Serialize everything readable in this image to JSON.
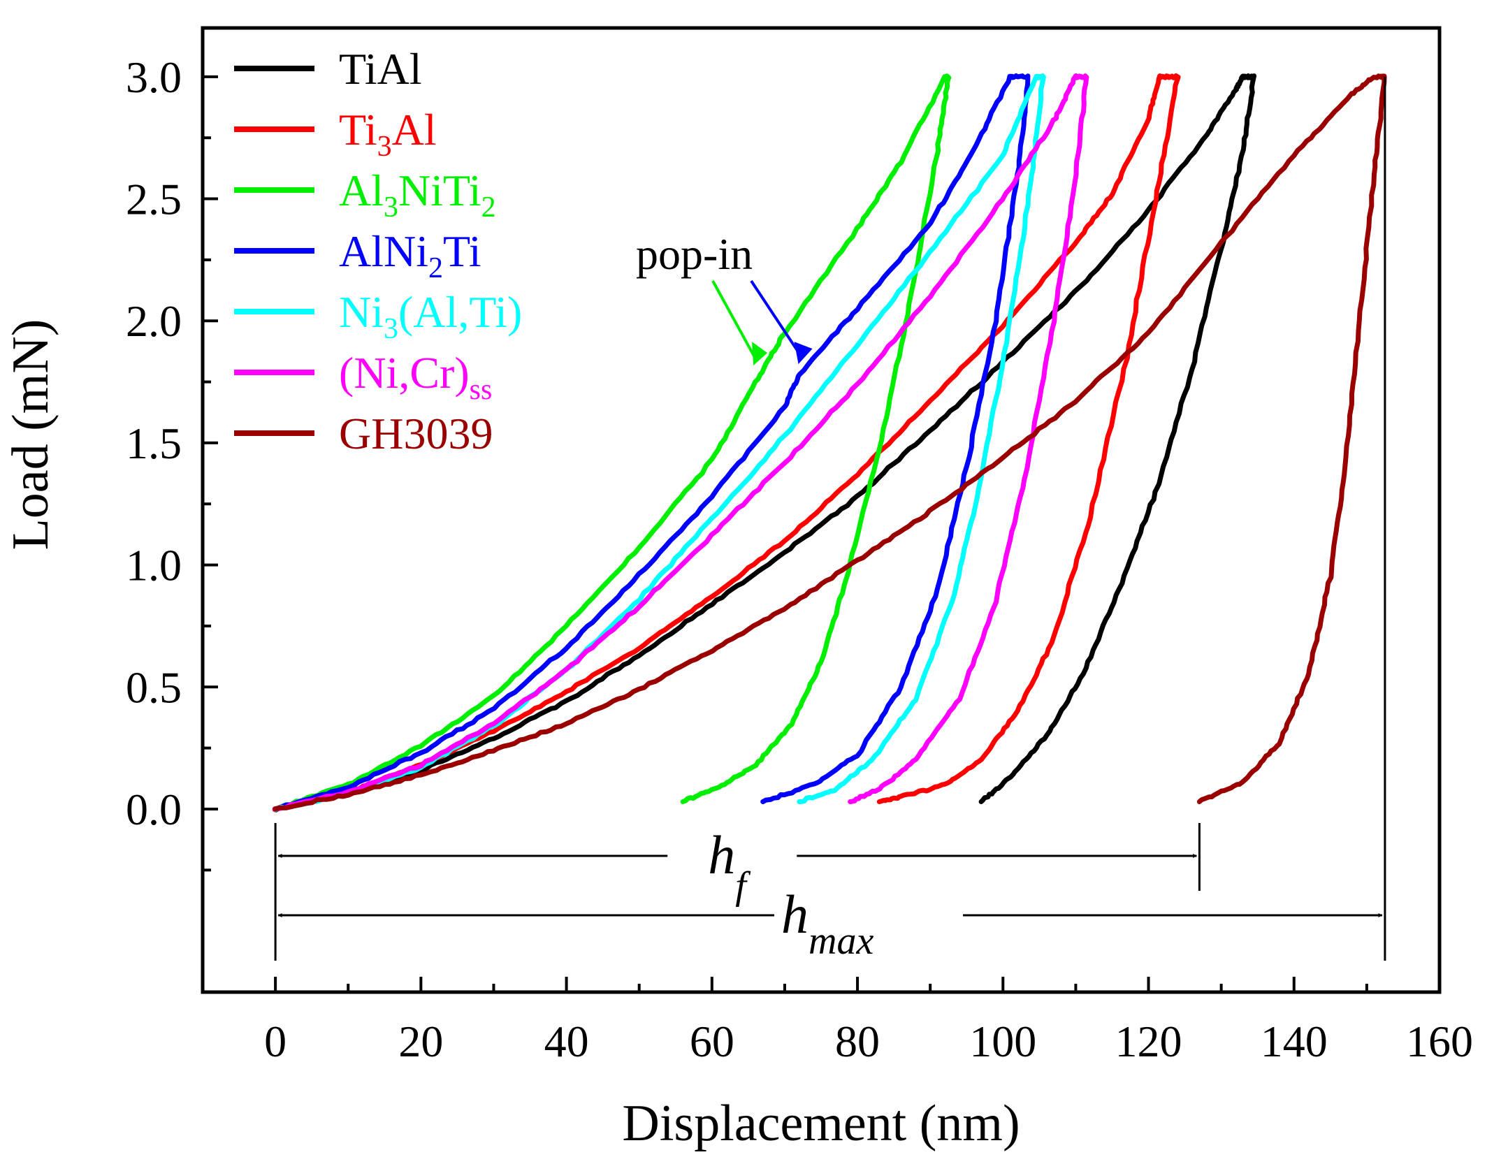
{
  "chart_data": {
    "type": "line",
    "title": "",
    "xlabel": "Displacement (nm)",
    "ylabel": "Load (mN)",
    "xlim": [
      -10,
      160
    ],
    "ylim": [
      -0.75,
      3.2
    ],
    "xticks": [
      0,
      20,
      40,
      60,
      80,
      100,
      120,
      140,
      160
    ],
    "yticks": [
      0.0,
      0.5,
      1.0,
      1.5,
      2.0,
      2.5,
      3.0
    ],
    "xtick_labels": [
      "0",
      "20",
      "40",
      "60",
      "80",
      "100",
      "120",
      "140",
      "160"
    ],
    "ytick_labels": [
      "0.0",
      "0.5",
      "1.0",
      "1.5",
      "2.0",
      "2.5",
      "3.0"
    ],
    "legend_position": "top-left",
    "series": [
      {
        "name": "TiAl",
        "name_main": "TiAl",
        "name_sub": "",
        "name_tail": "",
        "color": "#000000",
        "loading": [
          [
            0,
            0
          ],
          [
            10,
            0.06
          ],
          [
            20,
            0.16
          ],
          [
            30,
            0.29
          ],
          [
            40,
            0.44
          ],
          [
            50,
            0.63
          ],
          [
            60,
            0.84
          ],
          [
            70,
            1.05
          ],
          [
            80,
            1.28
          ],
          [
            90,
            1.55
          ],
          [
            100,
            1.83
          ],
          [
            110,
            2.12
          ],
          [
            120,
            2.45
          ],
          [
            128,
            2.76
          ],
          [
            132,
            2.95
          ],
          [
            133,
            3.0
          ]
        ],
        "unloading": [
          [
            134.5,
            3.0
          ],
          [
            133,
            2.7
          ],
          [
            130,
            2.3
          ],
          [
            126,
            1.8
          ],
          [
            121,
            1.3
          ],
          [
            116,
            0.9
          ],
          [
            111,
            0.55
          ],
          [
            106,
            0.3
          ],
          [
            101,
            0.13
          ],
          [
            97,
            0.03
          ]
        ]
      },
      {
        "name": "Ti3Al",
        "name_main": "Ti",
        "name_sub": "3",
        "name_tail": "Al",
        "color": "#ff0000",
        "loading": [
          [
            0,
            0
          ],
          [
            10,
            0.07
          ],
          [
            20,
            0.18
          ],
          [
            30,
            0.32
          ],
          [
            40,
            0.48
          ],
          [
            50,
            0.66
          ],
          [
            60,
            0.87
          ],
          [
            70,
            1.1
          ],
          [
            80,
            1.37
          ],
          [
            90,
            1.67
          ],
          [
            100,
            1.98
          ],
          [
            110,
            2.32
          ],
          [
            115,
            2.52
          ],
          [
            120,
            2.83
          ],
          [
            121.5,
            3.0
          ]
        ],
        "unloading": [
          [
            124,
            3.0
          ],
          [
            121,
            2.5
          ],
          [
            117,
            1.85
          ],
          [
            112,
            1.2
          ],
          [
            107,
            0.7
          ],
          [
            102,
            0.4
          ],
          [
            97,
            0.2
          ],
          [
            92,
            0.1
          ],
          [
            86,
            0.05
          ],
          [
            83,
            0.03
          ]
        ]
      },
      {
        "name": "Al3NiTi2",
        "name_main": "Al",
        "name_sub": "3",
        "name_tail": "NiTi",
        "name_sub2": "2",
        "color": "#00ee00",
        "loading": [
          [
            0,
            0
          ],
          [
            10,
            0.1
          ],
          [
            20,
            0.26
          ],
          [
            30,
            0.46
          ],
          [
            40,
            0.75
          ],
          [
            50,
            1.07
          ],
          [
            60,
            1.43
          ],
          [
            66,
            1.75
          ],
          [
            70,
            1.95
          ],
          [
            80,
            2.38
          ],
          [
            86,
            2.65
          ],
          [
            92,
            3.0
          ]
        ],
        "unloading": [
          [
            92.5,
            3.0
          ],
          [
            91,
            2.7
          ],
          [
            88,
            2.2
          ],
          [
            84,
            1.6
          ],
          [
            79,
            1.0
          ],
          [
            75,
            0.6
          ],
          [
            71,
            0.35
          ],
          [
            66,
            0.18
          ],
          [
            61,
            0.09
          ],
          [
            56,
            0.03
          ]
        ]
      },
      {
        "name": "AlNi2Ti",
        "name_main": "AlNi",
        "name_sub": "2",
        "name_tail": "Ti",
        "color": "#0000ff",
        "loading": [
          [
            0,
            0
          ],
          [
            10,
            0.09
          ],
          [
            20,
            0.23
          ],
          [
            30,
            0.41
          ],
          [
            40,
            0.66
          ],
          [
            50,
            0.96
          ],
          [
            60,
            1.28
          ],
          [
            70,
            1.65
          ],
          [
            72,
            1.78
          ],
          [
            80,
            2.05
          ],
          [
            90,
            2.4
          ],
          [
            96,
            2.7
          ],
          [
            101,
            3.0
          ]
        ],
        "unloading": [
          [
            103.5,
            3.0
          ],
          [
            102,
            2.6
          ],
          [
            99,
            2.0
          ],
          [
            95,
            1.4
          ],
          [
            91,
            0.9
          ],
          [
            86,
            0.5
          ],
          [
            80,
            0.22
          ],
          [
            74,
            0.1
          ],
          [
            67,
            0.03
          ]
        ]
      },
      {
        "name": "Ni3(Al,Ti)",
        "name_main": "Ni",
        "name_sub": "3",
        "name_tail": "(Al,Ti)",
        "color": "#00ffff",
        "loading": [
          [
            0,
            0
          ],
          [
            10,
            0.06
          ],
          [
            20,
            0.17
          ],
          [
            30,
            0.34
          ],
          [
            40,
            0.57
          ],
          [
            50,
            0.86
          ],
          [
            60,
            1.19
          ],
          [
            70,
            1.53
          ],
          [
            80,
            1.9
          ],
          [
            90,
            2.28
          ],
          [
            100,
            2.68
          ],
          [
            104.5,
            3.0
          ]
        ],
        "unloading": [
          [
            105.5,
            3.0
          ],
          [
            104,
            2.6
          ],
          [
            101,
            2.0
          ],
          [
            97,
            1.35
          ],
          [
            93,
            0.85
          ],
          [
            88,
            0.45
          ],
          [
            82,
            0.2
          ],
          [
            77,
            0.08
          ],
          [
            72,
            0.03
          ]
        ]
      },
      {
        "name": "(Ni,Cr)ss",
        "name_main": "(Ni,Cr)",
        "name_sub": "ss",
        "name_tail": "",
        "color": "#ff00ff",
        "loading": [
          [
            0,
            0
          ],
          [
            10,
            0.07
          ],
          [
            20,
            0.18
          ],
          [
            30,
            0.35
          ],
          [
            40,
            0.57
          ],
          [
            50,
            0.83
          ],
          [
            60,
            1.12
          ],
          [
            70,
            1.42
          ],
          [
            80,
            1.74
          ],
          [
            90,
            2.1
          ],
          [
            100,
            2.5
          ],
          [
            107,
            2.82
          ],
          [
            110,
            3.0
          ]
        ],
        "unloading": [
          [
            111.5,
            3.0
          ],
          [
            110,
            2.6
          ],
          [
            107,
            2.0
          ],
          [
            103,
            1.35
          ],
          [
            99,
            0.85
          ],
          [
            94,
            0.45
          ],
          [
            88,
            0.2
          ],
          [
            83,
            0.08
          ],
          [
            79,
            0.03
          ]
        ]
      },
      {
        "name": "GH3039",
        "name_main": "GH3039",
        "name_sub": "",
        "name_tail": "",
        "color": "#9b0000",
        "loading": [
          [
            0,
            0
          ],
          [
            10,
            0.06
          ],
          [
            20,
            0.14
          ],
          [
            30,
            0.24
          ],
          [
            40,
            0.35
          ],
          [
            50,
            0.49
          ],
          [
            60,
            0.65
          ],
          [
            70,
            0.82
          ],
          [
            80,
            1.02
          ],
          [
            90,
            1.22
          ],
          [
            100,
            1.44
          ],
          [
            110,
            1.67
          ],
          [
            120,
            1.95
          ],
          [
            130,
            2.32
          ],
          [
            140,
            2.68
          ],
          [
            148,
            2.93
          ],
          [
            151,
            3.0
          ]
        ],
        "unloading": [
          [
            152.5,
            3.0
          ],
          [
            151,
            2.6
          ],
          [
            149,
            2.0
          ],
          [
            147,
            1.4
          ],
          [
            145,
            0.95
          ],
          [
            142,
            0.55
          ],
          [
            138,
            0.27
          ],
          [
            133,
            0.11
          ],
          [
            127,
            0.03
          ]
        ]
      }
    ],
    "annotations": {
      "popin_text": "pop-in",
      "hf_main": "h",
      "hf_sub": "f",
      "hmax_main": "h",
      "hmax_sub": "max",
      "hf_value": 127,
      "hmax_value": 152.5,
      "popin_green_point": [
        65.5,
        1.8
      ],
      "popin_blue_point": [
        71.5,
        1.8
      ]
    }
  }
}
